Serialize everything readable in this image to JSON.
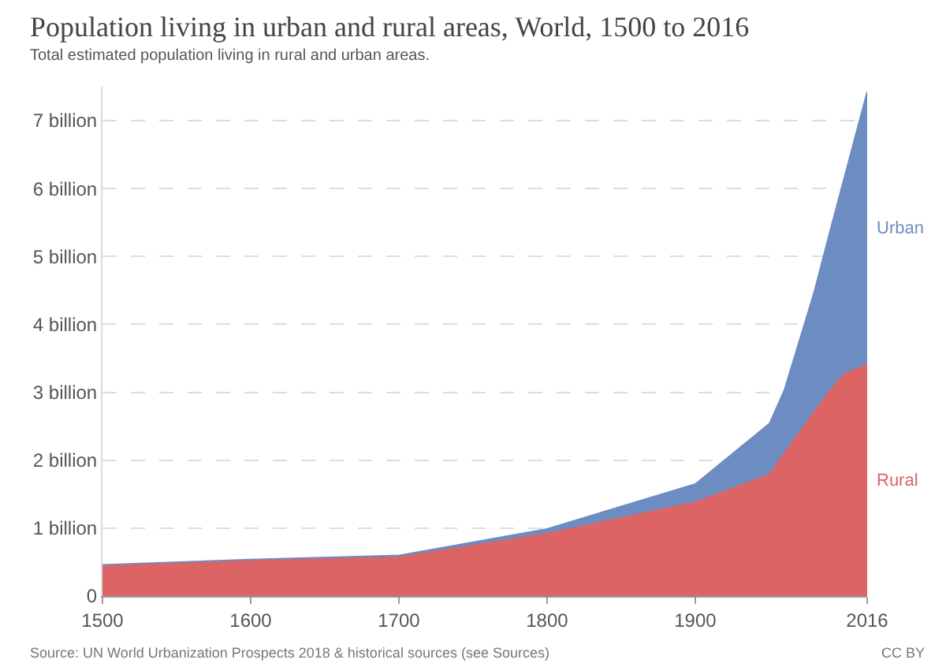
{
  "chart_data": {
    "type": "area",
    "stacked": true,
    "title": "Population living in urban and rural areas, World, 1500 to 2016",
    "subtitle": "Total estimated population living in rural and urban areas.",
    "x": [
      1500,
      1600,
      1700,
      1800,
      1900,
      1950,
      1960,
      1980,
      1990,
      2000,
      2016
    ],
    "series": [
      {
        "name": "Rural",
        "color": "#dd6464",
        "values": [
          0.44,
          0.52,
          0.57,
          0.92,
          1.38,
          1.79,
          2.1,
          2.7,
          3.0,
          3.26,
          3.41
        ]
      },
      {
        "name": "Urban",
        "color": "#6d8cc1",
        "values": [
          0.02,
          0.02,
          0.03,
          0.07,
          0.27,
          0.75,
          0.93,
          1.76,
          2.3,
          2.86,
          4.02
        ]
      }
    ],
    "xlim": [
      1500,
      2016
    ],
    "xticks": [
      1500,
      1600,
      1700,
      1800,
      1900,
      2016
    ],
    "ylim": [
      0,
      7.5
    ],
    "yticks": [
      0,
      {
        "value": 1,
        "label": "1 billion"
      },
      {
        "value": 2,
        "label": "2 billion"
      },
      {
        "value": 3,
        "label": "3 billion"
      },
      {
        "value": 4,
        "label": "4 billion"
      },
      {
        "value": 5,
        "label": "5 billion"
      },
      {
        "value": 6,
        "label": "6 billion"
      },
      {
        "value": 7,
        "label": "7 billion"
      }
    ],
    "grid": "y",
    "legend": false,
    "annotations": [
      "Source: UN World Urbanization Prospects 2018 & historical sources (see Sources)",
      "CC BY"
    ]
  }
}
